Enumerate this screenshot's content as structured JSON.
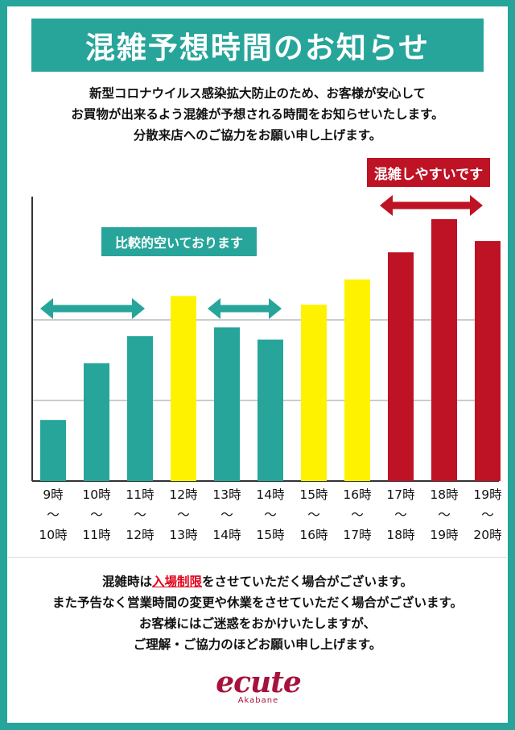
{
  "title": "混雑予想時間のお知らせ",
  "intro_lines": [
    "新型コロナウイルス感染拡大防止のため、お客様が安心して",
    "お買物が出来るよう混雑が予想される時間をお知らせいたします。",
    "分散来店へのご協力をお願い申し上げます。"
  ],
  "notes": {
    "busy": "混雑しやすいです",
    "quiet": "比較的空いております"
  },
  "colors": {
    "teal": "#27a59a",
    "yellow": "#fff200",
    "red": "#be1325",
    "highlight": "#e2001a"
  },
  "chart_data": {
    "type": "bar",
    "categories": [
      "9時〜10時",
      "10時〜11時",
      "11時〜12時",
      "12時〜13時",
      "13時〜14時",
      "14時〜15時",
      "15時〜16時",
      "16時〜17時",
      "17時〜18時",
      "18時〜19時",
      "19時〜20時"
    ],
    "tick_labels": [
      [
        "9時",
        "〜",
        "10時"
      ],
      [
        "10時",
        "〜",
        "11時"
      ],
      [
        "11時",
        "〜",
        "12時"
      ],
      [
        "12時",
        "〜",
        "13時"
      ],
      [
        "13時",
        "〜",
        "14時"
      ],
      [
        "14時",
        "〜",
        "15時"
      ],
      [
        "15時",
        "〜",
        "16時"
      ],
      [
        "16時",
        "〜",
        "17時"
      ],
      [
        "17時",
        "〜",
        "18時"
      ],
      [
        "18時",
        "〜",
        "19時"
      ],
      [
        "19時",
        "〜",
        "20時"
      ]
    ],
    "values": [
      0.7,
      1.35,
      1.66,
      2.12,
      1.76,
      1.62,
      2.02,
      2.31,
      2.62,
      3.0,
      2.75
    ],
    "levels": [
      "quiet",
      "quiet",
      "quiet",
      "moderate",
      "quiet",
      "quiet",
      "moderate",
      "moderate",
      "busy",
      "busy",
      "busy"
    ],
    "ylim": [
      0,
      3.25
    ],
    "gridlines": [
      1,
      2
    ],
    "grid": true
  },
  "outro": {
    "line1_pre": "混雑時は",
    "line1_highlight": "入場制限",
    "line1_post": "をさせていただく場合がございます。",
    "lines": [
      "また予告なく営業時間の変更や休業をさせていただく場合がございます。",
      "お客様にはご迷惑をおかけいたしますが、",
      "ご理解・ご協力のほどお願い申し上げます。"
    ]
  },
  "logo": {
    "name": "ecute",
    "sub": "Akabane"
  }
}
